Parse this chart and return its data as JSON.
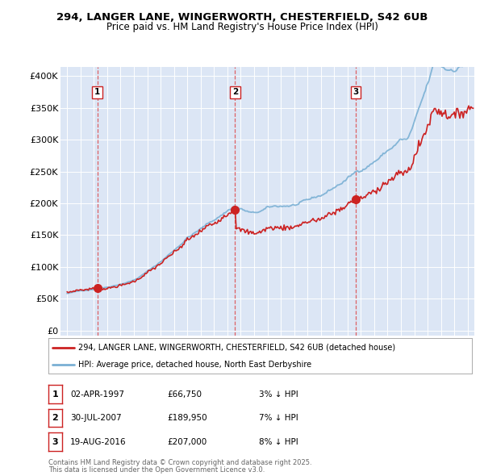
{
  "title_line1": "294, LANGER LANE, WINGERWORTH, CHESTERFIELD, S42 6UB",
  "title_line2": "Price paid vs. HM Land Registry's House Price Index (HPI)",
  "plot_bg_color": "#dce6f5",
  "red_line_label": "294, LANGER LANE, WINGERWORTH, CHESTERFIELD, S42 6UB (detached house)",
  "blue_line_label": "HPI: Average price, detached house, North East Derbyshire",
  "purchases": [
    {
      "label": "1",
      "date": "02-APR-1997",
      "price": 66750,
      "pct": "3%",
      "x": 1997.25
    },
    {
      "label": "2",
      "date": "30-JUL-2007",
      "price": 189950,
      "pct": "7%",
      "x": 2007.58
    },
    {
      "label": "3",
      "date": "19-AUG-2016",
      "price": 207000,
      "pct": "8%",
      "x": 2016.63
    }
  ],
  "footer_line1": "Contains HM Land Registry data © Crown copyright and database right 2025.",
  "footer_line2": "This data is licensed under the Open Government Licence v3.0.",
  "yticks": [
    0,
    50000,
    100000,
    150000,
    200000,
    250000,
    300000,
    350000,
    400000
  ],
  "ytick_labels": [
    "£0",
    "£50K",
    "£100K",
    "£150K",
    "£200K",
    "£250K",
    "£300K",
    "£350K",
    "£400K"
  ],
  "xmin": 1994.5,
  "xmax": 2025.5,
  "ymin": -8000,
  "ymax": 415000
}
